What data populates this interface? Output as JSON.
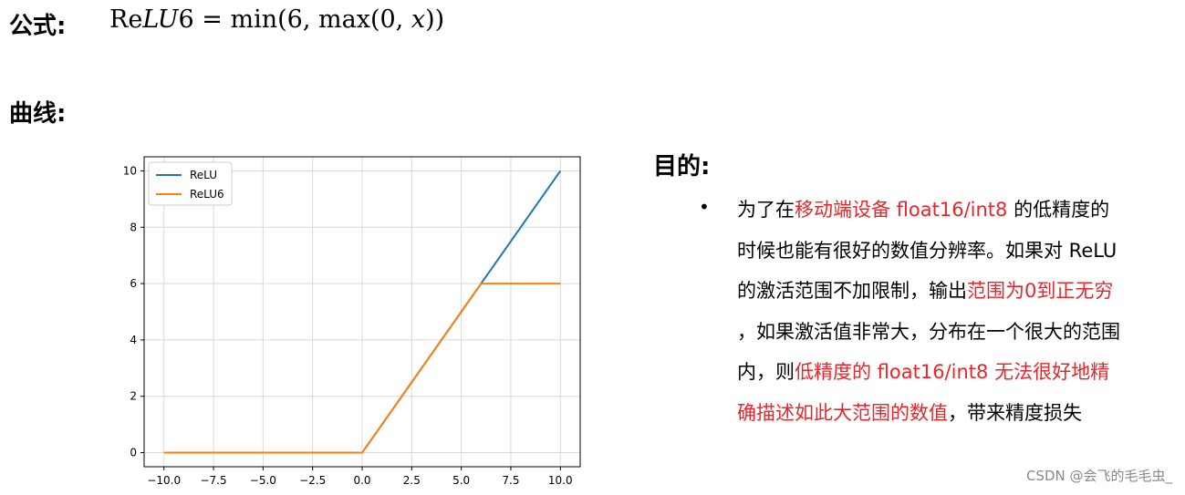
{
  "formula": {
    "label": "公式:",
    "lhs_prefix": "Re",
    "lhs_italic": "LU",
    "lhs_suffix": "6",
    "rhs_a": " = min(6, max(0, ",
    "rhs_var": "x",
    "rhs_b": "))"
  },
  "curve_label": "曲线:",
  "purpose": {
    "label": "目的:",
    "bullet": "•",
    "lines": [
      [
        {
          "t": "为了在",
          "red": false
        },
        {
          "t": "移动端设备 float16/int8",
          "red": true
        },
        {
          "t": " 的低精度的",
          "red": false
        }
      ],
      [
        {
          "t": "时候也能有很好的数值分辨率。如果对 ReLU",
          "red": false
        }
      ],
      [
        {
          "t": "的激活范围不加限制，输出",
          "red": false
        },
        {
          "t": "范围为0到正无穷",
          "red": true
        }
      ],
      [
        {
          "t": "，如果激活值非常大，分布在一个很大的范围",
          "red": false
        }
      ],
      [
        {
          "t": "内，则",
          "red": false
        },
        {
          "t": "低精度的 float16/int8 无法很好地精",
          "red": true
        }
      ],
      [
        {
          "t": "确描述如此大范围的数值",
          "red": true
        },
        {
          "t": "，带来精度损失",
          "red": false
        }
      ]
    ]
  },
  "watermark": "CSDN @会飞的毛毛虫_",
  "chart_data": {
    "type": "line",
    "xlim": [
      -11,
      11
    ],
    "ylim": [
      -0.5,
      10.5
    ],
    "xticks": [
      -10,
      -7.5,
      -5,
      -2.5,
      0,
      2.5,
      5,
      7.5,
      10
    ],
    "xtick_labels": [
      "−10.0",
      "−7.5",
      "−5.0",
      "−2.5",
      "0.0",
      "2.5",
      "5.0",
      "7.5",
      "10.0"
    ],
    "yticks": [
      0,
      2,
      4,
      6,
      8,
      10
    ],
    "ytick_labels": [
      "0",
      "2",
      "4",
      "6",
      "8",
      "10"
    ],
    "grid": true,
    "legend": "top-left",
    "series": [
      {
        "name": "ReLU",
        "color": "#1f77b4",
        "points": [
          [
            -10,
            0
          ],
          [
            0,
            0
          ],
          [
            10,
            10
          ]
        ]
      },
      {
        "name": "ReLU6",
        "color": "#ff7f0e",
        "points": [
          [
            -10,
            0
          ],
          [
            0,
            0
          ],
          [
            6,
            6
          ],
          [
            10,
            6
          ]
        ]
      }
    ]
  }
}
